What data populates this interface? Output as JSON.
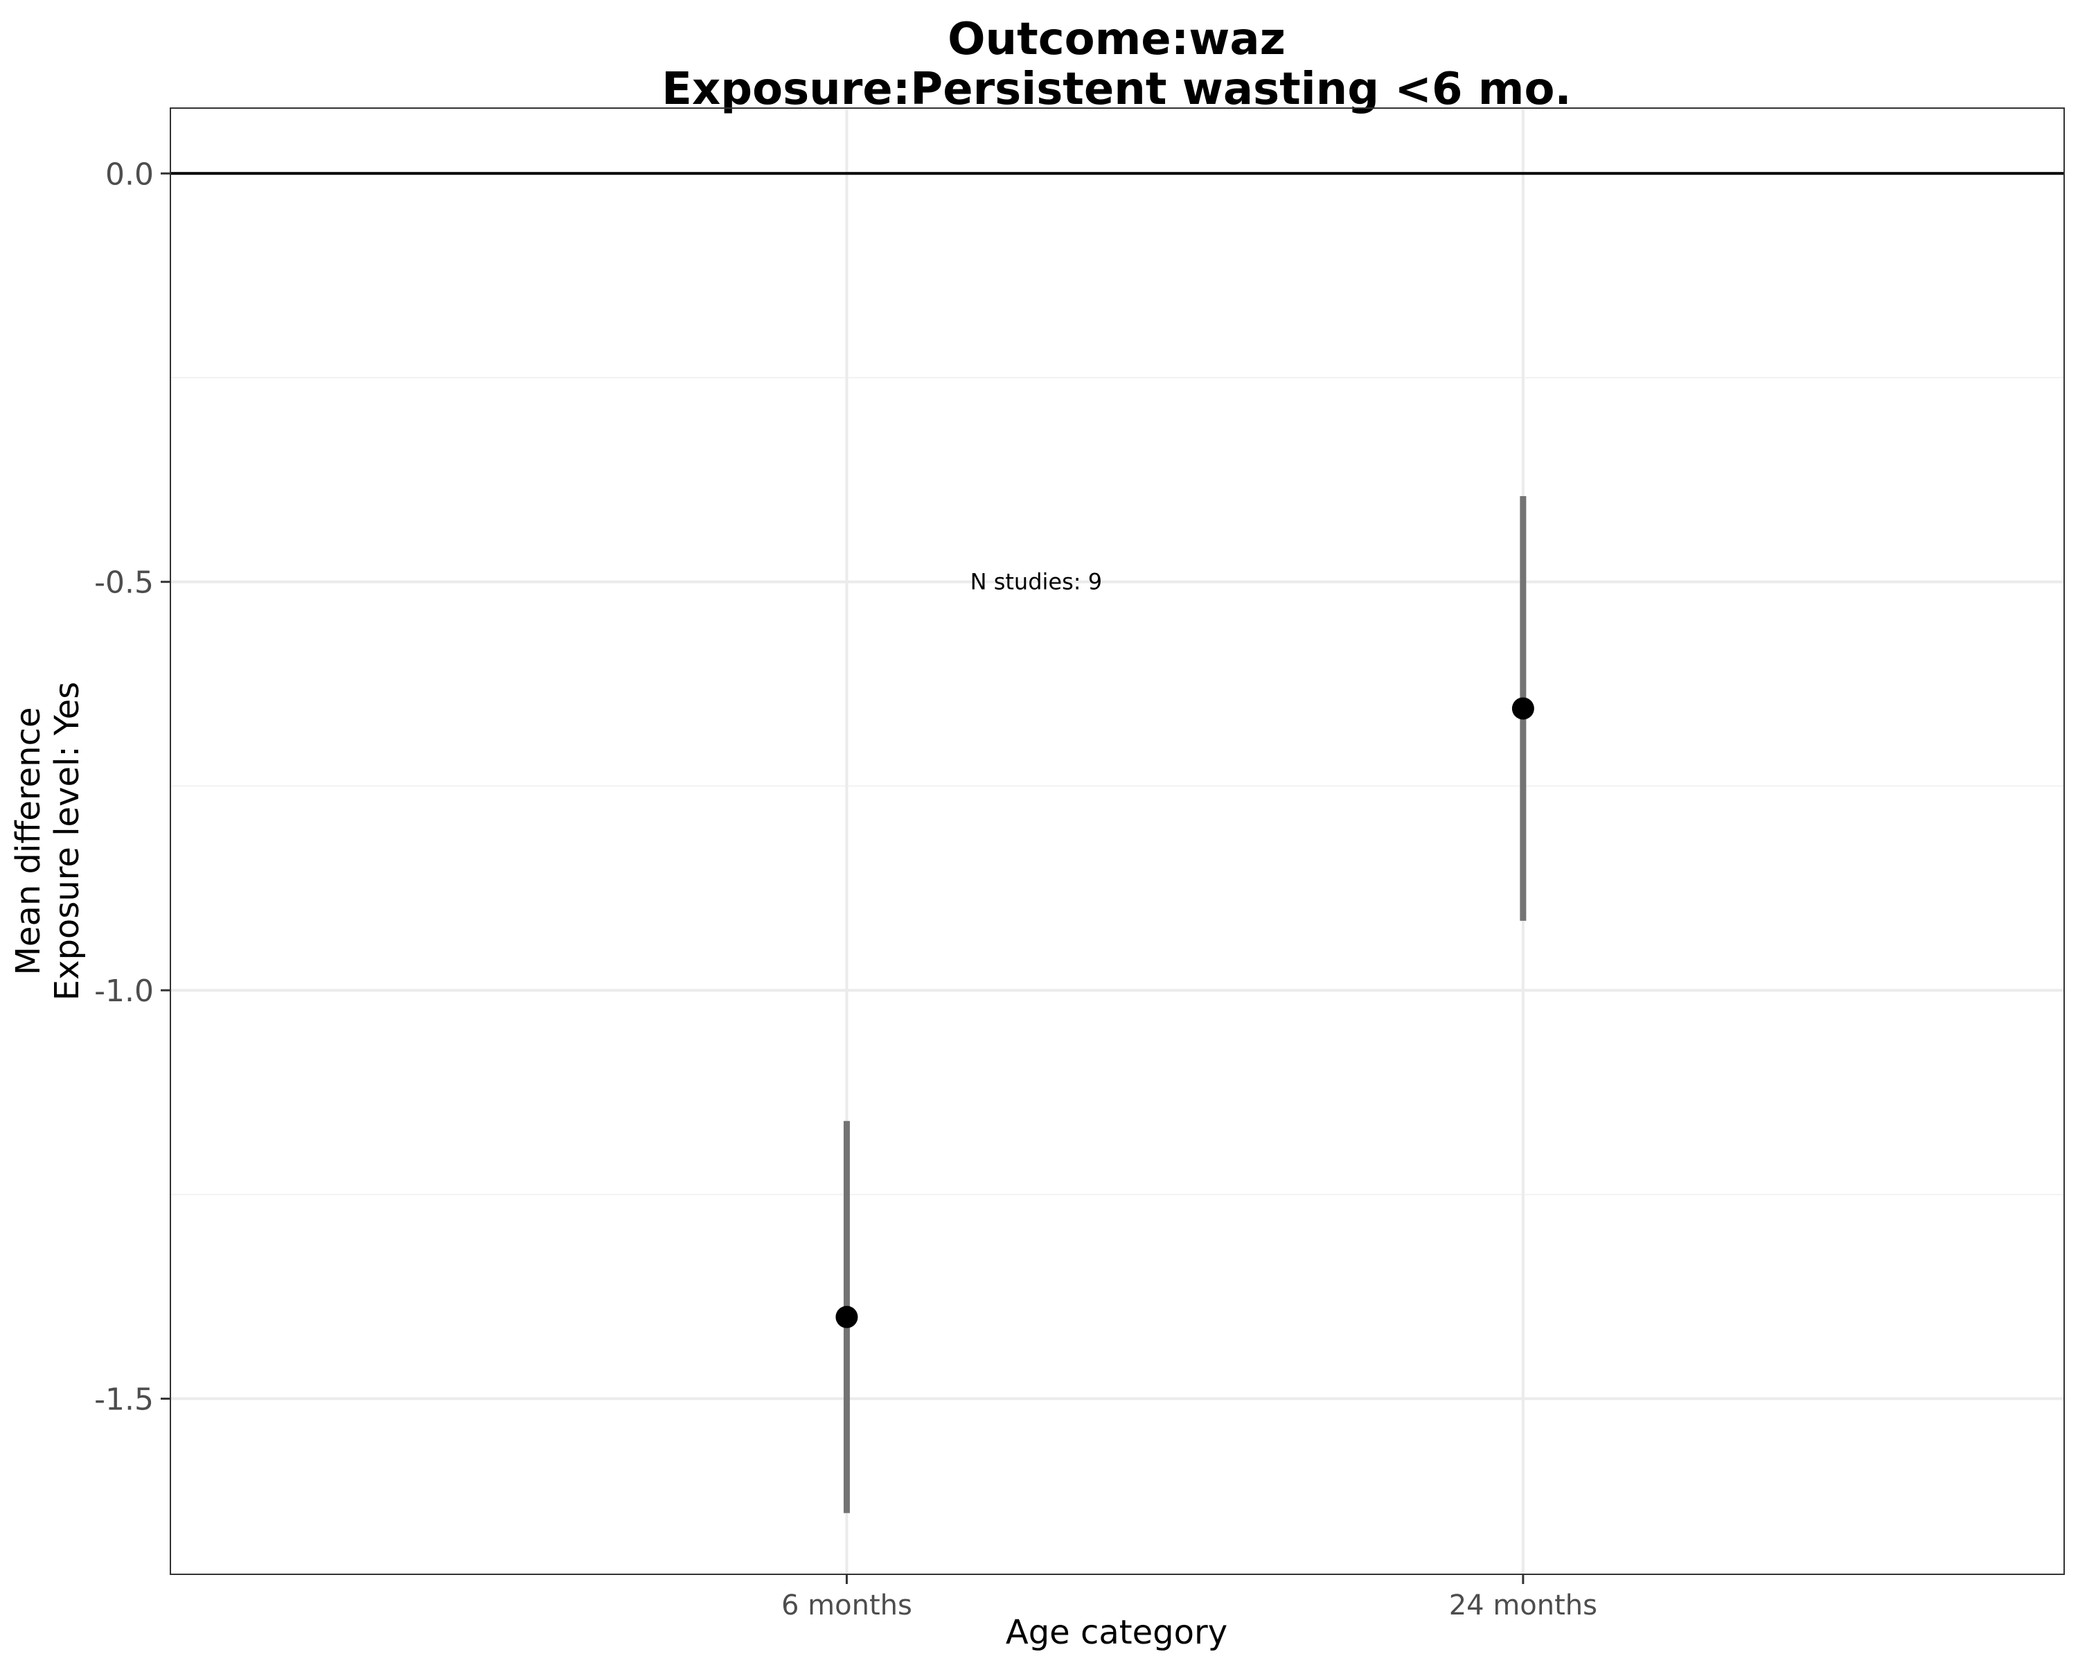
{
  "chart_data": {
    "type": "scatter",
    "title_lines": [
      "Outcome:waz",
      "Exposure:Persistent wasting  <6 mo."
    ],
    "xlabel": "Age category",
    "ylabel_lines": [
      "Mean difference",
      "Exposure level: Yes"
    ],
    "categories": [
      "6 months",
      "24 months"
    ],
    "points": [
      {
        "category": "6 months",
        "estimate": -1.4,
        "ci_lower": -1.64,
        "ci_upper": -1.16
      },
      {
        "category": "24 months",
        "estimate": -0.655,
        "ci_lower": -0.915,
        "ci_upper": -0.395
      }
    ],
    "yticks": [
      0.0,
      -0.5,
      -1.0,
      -1.5
    ],
    "ytick_labels": [
      "0.0",
      "-0.5",
      "-1.0",
      "-1.5"
    ],
    "ylim": [
      -1.715,
      0.08
    ],
    "reference_line": 0.0,
    "annotation": {
      "text": "N studies: 9",
      "category_position": 1.28,
      "y": -0.5
    },
    "grid": true,
    "point_color": "#000000",
    "errorbar_color": "#737373"
  }
}
